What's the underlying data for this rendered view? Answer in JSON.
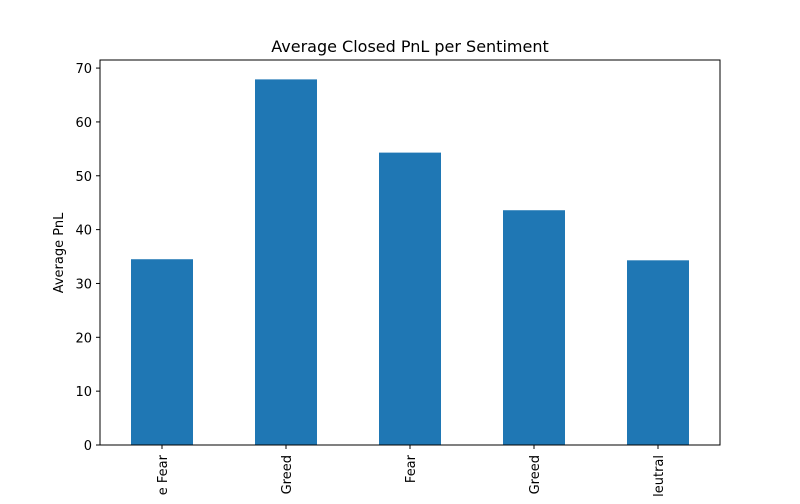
{
  "chart_data": {
    "type": "bar",
    "title": "Average Closed PnL per Sentiment",
    "xlabel": "",
    "ylabel": "Average PnL",
    "categories": [
      "e Fear",
      "Greed",
      "Fear",
      "Greed",
      "leutral"
    ],
    "values": [
      34.5,
      67.9,
      54.3,
      43.6,
      34.3
    ],
    "ylim": [
      0,
      71.5
    ],
    "yticks": [
      0,
      10,
      20,
      30,
      40,
      50,
      60,
      70
    ],
    "bar_color": "#1f77b4",
    "grid": false,
    "legend": "none"
  }
}
